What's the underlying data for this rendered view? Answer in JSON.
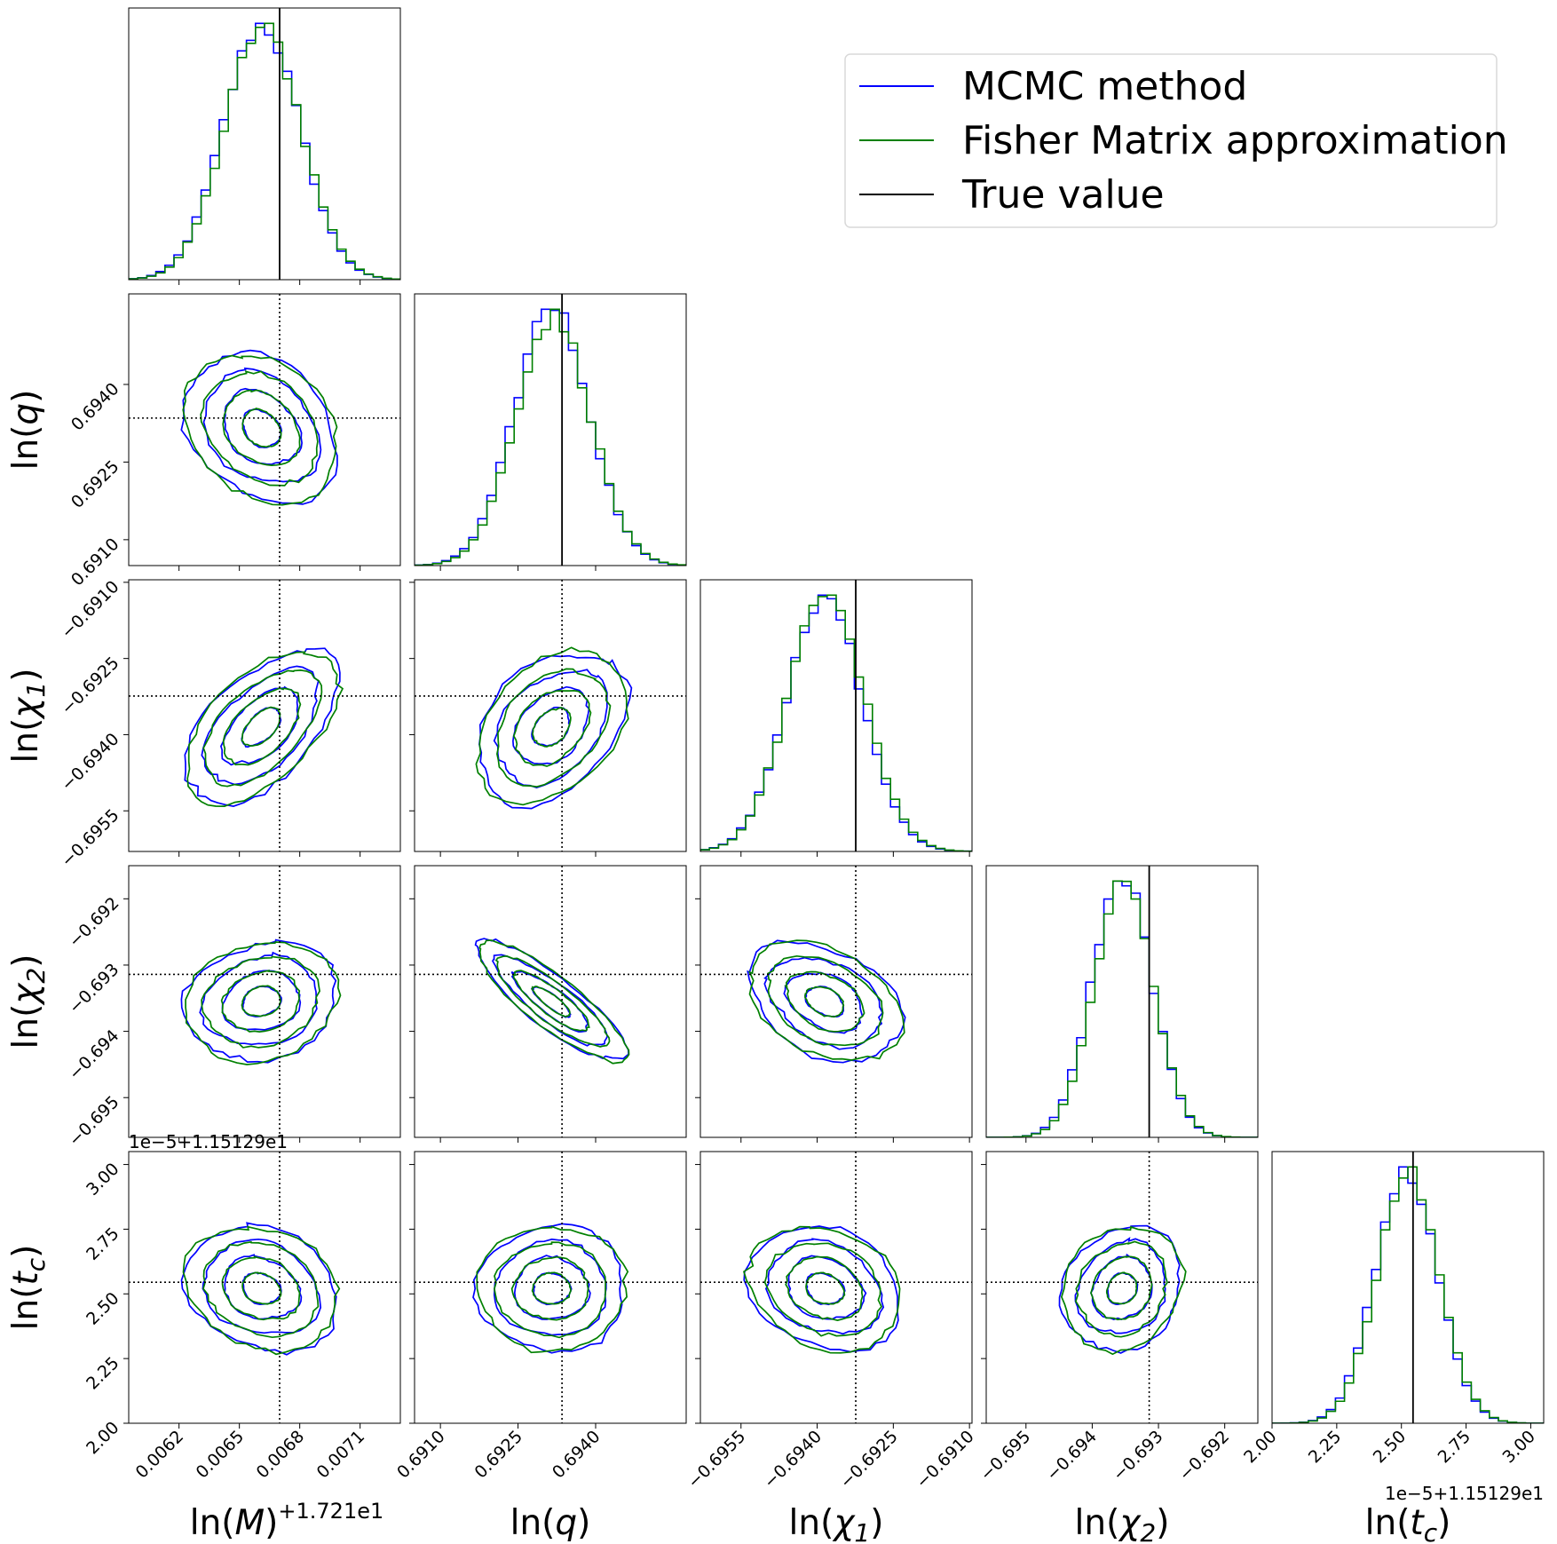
{
  "chart_data": {
    "type": "corner",
    "description_free": true,
    "legend": {
      "placement": "top-right",
      "entries": [
        {
          "label": "MCMC method",
          "color": "#0000ff"
        },
        {
          "label": "Fisher Matrix approximation",
          "color": "#008000"
        },
        {
          "label": "True value",
          "color": "#000000"
        }
      ]
    },
    "parameters": [
      {
        "id": "M",
        "label_main": "ln(",
        "label_var": "M",
        "label_end": ")",
        "label_sup": "+1.721e1",
        "range": [
          0.00595,
          0.0073
        ],
        "truth": 0.0067,
        "mean": 0.00661,
        "sigma": 0.00019,
        "ticks": [
          "0.0062",
          "0.0065",
          "0.0068",
          "0.0071"
        ],
        "tick_values": [
          0.0062,
          0.0065,
          0.0068,
          0.0071
        ]
      },
      {
        "id": "q",
        "label_main": "ln(",
        "label_var": "q",
        "label_end": ")",
        "range": [
          0.6905,
          0.69575
        ],
        "truth": 0.69335,
        "mean": 0.69315,
        "sigma": 0.00072,
        "ticks": [
          "0.6910",
          "0.6925",
          "0.6940"
        ],
        "tick_values": [
          0.691,
          0.6925,
          0.694
        ]
      },
      {
        "id": "chi1",
        "label_main": "ln(",
        "label_var": "χ",
        "label_sub": "1",
        "label_end": ")",
        "range": [
          -0.6963,
          -0.69095
        ],
        "truth": -0.69324,
        "mean": -0.69385,
        "sigma": 0.00075,
        "ticks": [
          "−0.6955",
          "−0.6940",
          "−0.6925",
          "−0.6910"
        ],
        "tick_values": [
          -0.6955,
          -0.694,
          -0.6925,
          -0.691
        ]
      },
      {
        "id": "chi2",
        "label_main": "ln(",
        "label_var": "χ",
        "label_sub": "2",
        "label_end": ")",
        "range": [
          -0.6956,
          -0.6915
        ],
        "truth": -0.69314,
        "mean": -0.69355,
        "sigma": 0.00045,
        "ticks": [
          "−0.695",
          "−0.694",
          "−0.693",
          "−0.692"
        ],
        "tick_values": [
          -0.695,
          -0.694,
          -0.693,
          -0.692
        ]
      },
      {
        "id": "tc",
        "label_main": "ln(",
        "label_var": "t",
        "label_sub": "c",
        "label_end": ")",
        "label_offset": "1e−5+1.15129e1",
        "range": [
          2.0,
          3.05
        ],
        "truth": 2.545,
        "mean": 2.52,
        "sigma": 0.12,
        "ticks": [
          "2.00",
          "2.25",
          "2.50",
          "2.75",
          "3.00"
        ],
        "tick_values": [
          2.0,
          2.25,
          2.5,
          2.75,
          3.0
        ]
      }
    ],
    "correlations": [
      {
        "i": 1,
        "j": 0,
        "rho": -0.25
      },
      {
        "i": 2,
        "j": 0,
        "rho": 0.55
      },
      {
        "i": 2,
        "j": 1,
        "rho": 0.35
      },
      {
        "i": 3,
        "j": 0,
        "rho": 0.15
      },
      {
        "i": 3,
        "j": 1,
        "rho": -0.85
      },
      {
        "i": 3,
        "j": 2,
        "rho": -0.35
      },
      {
        "i": 4,
        "j": 0,
        "rho": -0.18
      },
      {
        "i": 4,
        "j": 1,
        "rho": 0.0
      },
      {
        "i": 4,
        "j": 2,
        "rho": -0.2
      },
      {
        "i": 4,
        "j": 3,
        "rho": 0.15
      }
    ],
    "contour_levels_sigma": [
      0.5,
      1.0,
      1.5,
      2.0
    ],
    "histogram_bins": 30
  }
}
